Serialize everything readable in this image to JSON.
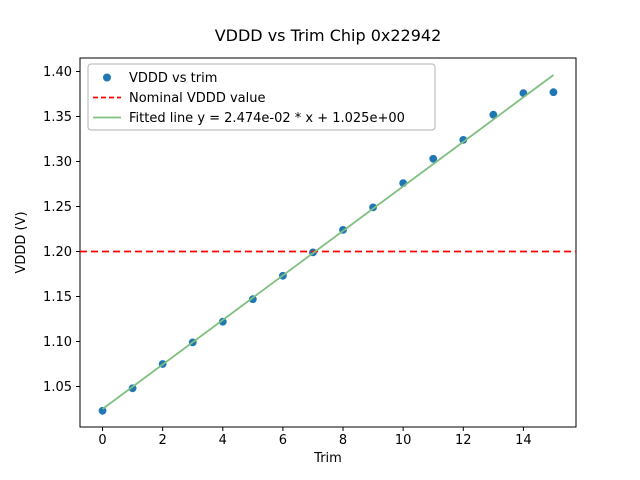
{
  "chart_data": {
    "type": "scatter",
    "title": "VDDD vs Trim Chip 0x22942",
    "xlabel": "Trim",
    "ylabel": "VDDD (V)",
    "xlim": [
      -0.75,
      15.75
    ],
    "ylim": [
      1.005,
      1.415
    ],
    "x_ticks": [
      0,
      2,
      4,
      6,
      8,
      10,
      12,
      14
    ],
    "y_ticks": [
      1.05,
      1.1,
      1.15,
      1.2,
      1.25,
      1.3,
      1.35,
      1.4
    ],
    "grid": false,
    "legend_position": "upper left",
    "series": [
      {
        "name": "VDDD vs trim",
        "type": "scatter",
        "color": "#1f77b4",
        "x": [
          0,
          1,
          2,
          3,
          4,
          5,
          6,
          7,
          8,
          9,
          10,
          11,
          12,
          13,
          14,
          15
        ],
        "y": [
          1.023,
          1.048,
          1.075,
          1.099,
          1.122,
          1.147,
          1.173,
          1.199,
          1.224,
          1.249,
          1.276,
          1.303,
          1.324,
          1.352,
          1.376,
          1.377
        ]
      },
      {
        "name": "Nominal VDDD value",
        "type": "hline",
        "color": "#ff0000",
        "linestyle": "dashed",
        "y": 1.2
      },
      {
        "name": "Fitted line y = 2.474e-02 * x + 1.025e+00",
        "type": "line",
        "color": "#7fbf7f",
        "slope": 0.02474,
        "intercept": 1.025,
        "x_range": [
          0,
          15
        ]
      }
    ]
  }
}
